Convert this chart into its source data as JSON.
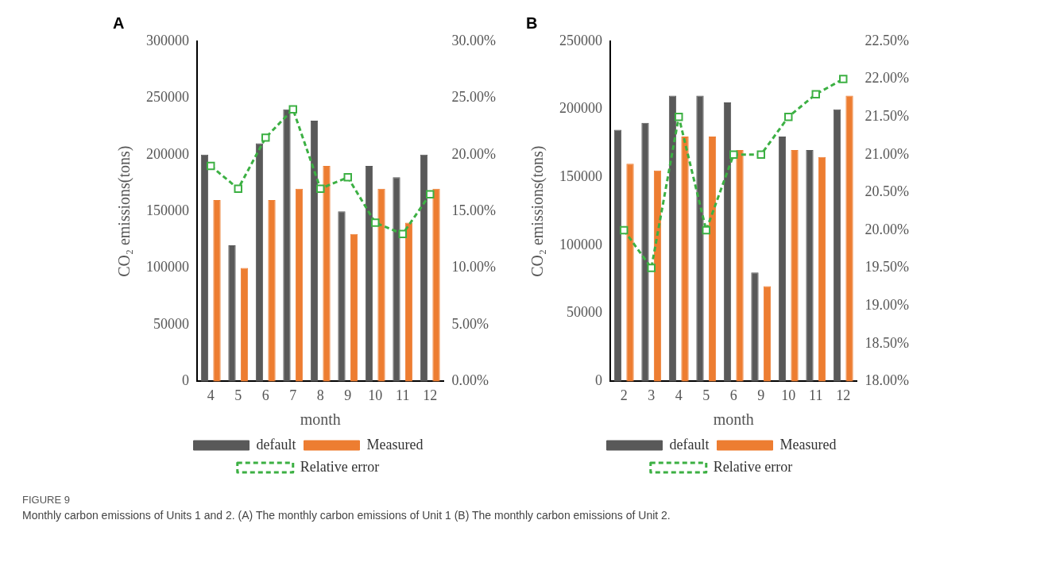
{
  "chart_data": [
    {
      "type": "bar",
      "title": "A",
      "xlabel": "month",
      "ylabel": "CO₂ emissions(tons)",
      "categories": [
        "4",
        "5",
        "6",
        "7",
        "8",
        "9",
        "10",
        "11",
        "12"
      ],
      "series": [
        {
          "name": "default",
          "color": "#595959",
          "values": [
            200000,
            120000,
            210000,
            240000,
            230000,
            150000,
            190000,
            180000,
            200000
          ]
        },
        {
          "name": "Measured",
          "color": "#ed7d31",
          "values": [
            160000,
            100000,
            160000,
            170000,
            190000,
            130000,
            170000,
            140000,
            170000
          ]
        },
        {
          "name": "Relative error",
          "type": "line",
          "axis": "y2",
          "color": "#3cb043",
          "values": [
            19,
            17,
            21.5,
            24,
            17,
            18,
            14,
            13,
            16.5
          ]
        }
      ],
      "ylim": [
        0,
        300000
      ],
      "yticks": [
        0,
        50000,
        100000,
        150000,
        200000,
        250000,
        300000
      ],
      "y2lim": [
        0,
        30
      ],
      "y2ticks": [
        {
          "value": 0,
          "label": "0.00%"
        },
        {
          "value": 5,
          "label": "5.00%"
        },
        {
          "value": 10,
          "label": "10.00%"
        },
        {
          "value": 15,
          "label": "15.00%"
        },
        {
          "value": 20,
          "label": "20.00%"
        },
        {
          "value": 25,
          "label": "25.00%"
        },
        {
          "value": 30,
          "label": "30.00%"
        }
      ],
      "legend": "bottom",
      "marker": "square",
      "line_style": "dashed",
      "annotations": [
        "FIGURE 9",
        "Monthly carbon emissions of Units 1 and 2. (A) The monthly carbon emissions of Unit 1 (B) The monthly carbon emissions of Unit 2."
      ]
    },
    {
      "type": "bar",
      "title": "B",
      "xlabel": "month",
      "ylabel": "CO₂ emissions(tons)",
      "categories": [
        "2",
        "3",
        "4",
        "5",
        "6",
        "9",
        "10",
        "11",
        "12"
      ],
      "series": [
        {
          "name": "default",
          "color": "#595959",
          "values": [
            185000,
            190000,
            210000,
            210000,
            205000,
            80000,
            180000,
            170000,
            200000
          ]
        },
        {
          "name": "Measured",
          "color": "#ed7d31",
          "values": [
            160000,
            155000,
            180000,
            180000,
            170000,
            70000,
            170000,
            165000,
            210000
          ]
        },
        {
          "name": "Relative error",
          "type": "line",
          "axis": "y2",
          "color": "#3cb043",
          "values": [
            20,
            19.5,
            21.5,
            20,
            21,
            21,
            21.5,
            21.8,
            22
          ]
        }
      ],
      "ylim": [
        0,
        250000
      ],
      "yticks": [
        0,
        50000,
        100000,
        150000,
        200000,
        250000
      ],
      "y2lim": [
        18,
        22.5
      ],
      "y2ticks": [
        {
          "value": 18,
          "label": "18.00%"
        },
        {
          "value": 18.5,
          "label": "18.50%"
        },
        {
          "value": 19,
          "label": "19.00%"
        },
        {
          "value": 19.5,
          "label": "19.50%"
        },
        {
          "value": 20,
          "label": "20.00%"
        },
        {
          "value": 20.5,
          "label": "20.50%"
        },
        {
          "value": 21,
          "label": "21.00%"
        },
        {
          "value": 21.5,
          "label": "21.50%"
        },
        {
          "value": 22,
          "label": "22.00%"
        },
        {
          "value": 22.5,
          "label": "22.50%"
        }
      ],
      "legend": "bottom",
      "marker": "square",
      "line_style": "dashed"
    }
  ]
}
